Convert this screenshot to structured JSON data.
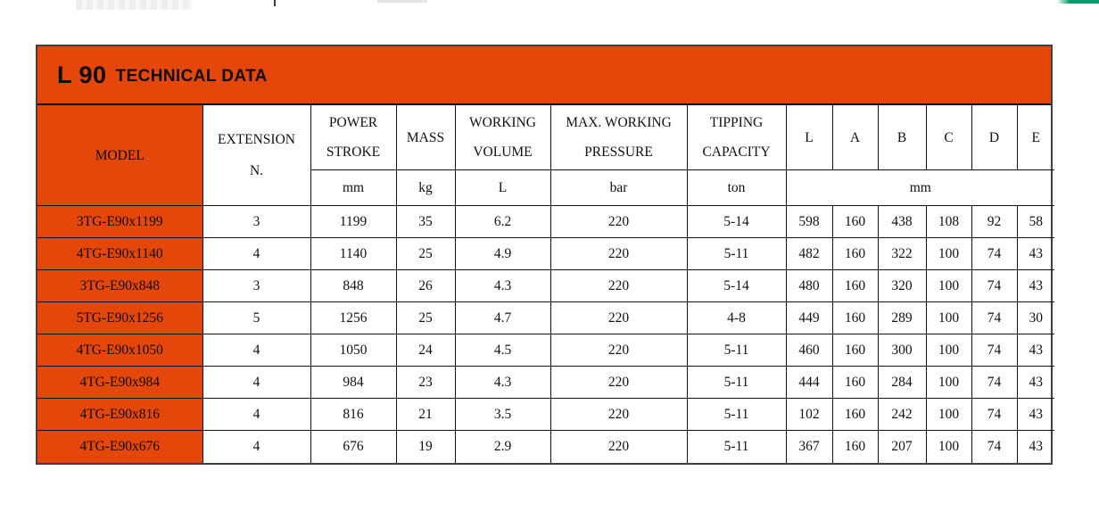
{
  "title": {
    "series": "L 90",
    "label": "TECHNICAL DATA"
  },
  "colors": {
    "accent_orange": "#e5470b",
    "green_strip": "#089c6c",
    "outer_border": "#404040",
    "grid_line": "#101010"
  },
  "table": {
    "header": {
      "model": "MODEL",
      "ext1": "EXTENSION",
      "ext2": "N.",
      "columns": [
        {
          "name": "POWER STROKE",
          "unit": "mm"
        },
        {
          "name": "MASS",
          "unit": "kg"
        },
        {
          "name": "WORKING VOLUME",
          "unit": "L"
        },
        {
          "name": "MAX. WORKING PRESSURE",
          "unit": "bar"
        },
        {
          "name": "TIPPING CAPACITY",
          "unit": "ton"
        }
      ],
      "dims": [
        "L",
        "A",
        "B",
        "C",
        "D",
        "E"
      ],
      "dim_unit": "mm"
    },
    "rows": [
      {
        "model": "3TG-E90x1199",
        "extension": "3",
        "power_stroke": "1199",
        "mass": "35",
        "working_volume": "6.2",
        "max_pressure": "220",
        "tipping_capacity": "5-14",
        "L": "598",
        "A": "160",
        "B": "438",
        "C": "108",
        "D": "92",
        "E": "58"
      },
      {
        "model": "4TG-E90x1140",
        "extension": "4",
        "power_stroke": "1140",
        "mass": "25",
        "working_volume": "4.9",
        "max_pressure": "220",
        "tipping_capacity": "5-11",
        "L": "482",
        "A": "160",
        "B": "322",
        "C": "100",
        "D": "74",
        "E": "43"
      },
      {
        "model": "3TG-E90x848",
        "extension": "3",
        "power_stroke": "848",
        "mass": "26",
        "working_volume": "4.3",
        "max_pressure": "220",
        "tipping_capacity": "5-14",
        "L": "480",
        "A": "160",
        "B": "320",
        "C": "100",
        "D": "74",
        "E": "43"
      },
      {
        "model": "5TG-E90x1256",
        "extension": "5",
        "power_stroke": "1256",
        "mass": "25",
        "working_volume": "4.7",
        "max_pressure": "220",
        "tipping_capacity": "4-8",
        "L": "449",
        "A": "160",
        "B": "289",
        "C": "100",
        "D": "74",
        "E": "30"
      },
      {
        "model": "4TG-E90x1050",
        "extension": "4",
        "power_stroke": "1050",
        "mass": "24",
        "working_volume": "4.5",
        "max_pressure": "220",
        "tipping_capacity": "5-11",
        "L": "460",
        "A": "160",
        "B": "300",
        "C": "100",
        "D": "74",
        "E": "43"
      },
      {
        "model": "4TG-E90x984",
        "extension": "4",
        "power_stroke": "984",
        "mass": "23",
        "working_volume": "4.3",
        "max_pressure": "220",
        "tipping_capacity": "5-11",
        "L": "444",
        "A": "160",
        "B": "284",
        "C": "100",
        "D": "74",
        "E": "43"
      },
      {
        "model": "4TG-E90x816",
        "extension": "4",
        "power_stroke": "816",
        "mass": "21",
        "working_volume": "3.5",
        "max_pressure": "220",
        "tipping_capacity": "5-11",
        "L": "102",
        "A": "160",
        "B": "242",
        "C": "100",
        "D": "74",
        "E": "43"
      },
      {
        "model": "4TG-E90x676",
        "extension": "4",
        "power_stroke": "676",
        "mass": "19",
        "working_volume": "2.9",
        "max_pressure": "220",
        "tipping_capacity": "5-11",
        "L": "367",
        "A": "160",
        "B": "207",
        "C": "100",
        "D": "74",
        "E": "43"
      }
    ]
  }
}
